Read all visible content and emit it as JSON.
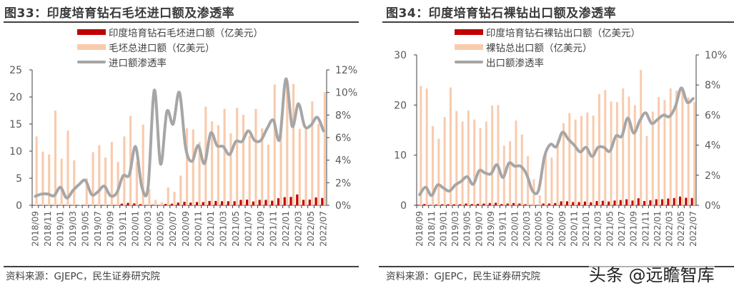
{
  "colors": {
    "lab_grown": "#c00000",
    "total": "#f8cbad",
    "penetration": "#a6a6a6",
    "axis": "#404040"
  },
  "watermark": "头条 @远瞻智库",
  "chart_data": [
    {
      "type": "bar+line",
      "title": "图33：印度培育钻石毛坯进口额及渗透率",
      "source": "资料来源：GJEPC，民生证券研究院",
      "x_tick_labels": [
        "2018/09",
        "2018/11",
        "2019/01",
        "2019/03",
        "2019/05",
        "2019/07",
        "2019/09",
        "2019/11",
        "2020/01",
        "2020/03",
        "2020/05",
        "2020/07",
        "2020/09",
        "2020/11",
        "2021/01",
        "2021/03",
        "2021/05",
        "2021/07",
        "2021/09",
        "2021/11",
        "2022/01",
        "2022/03",
        "2022/05",
        "2022/07"
      ],
      "months": [
        "2018/09",
        "2018/10",
        "2018/11",
        "2018/12",
        "2019/01",
        "2019/02",
        "2019/03",
        "2019/04",
        "2019/05",
        "2019/06",
        "2019/07",
        "2019/08",
        "2019/09",
        "2019/10",
        "2019/11",
        "2019/12",
        "2020/01",
        "2020/02",
        "2020/03",
        "2020/04",
        "2020/05",
        "2020/06",
        "2020/07",
        "2020/08",
        "2020/09",
        "2020/10",
        "2020/11",
        "2020/12",
        "2021/01",
        "2021/02",
        "2021/03",
        "2021/04",
        "2021/05",
        "2021/06",
        "2021/07",
        "2021/08",
        "2021/09",
        "2021/10",
        "2021/11",
        "2021/12",
        "2022/01",
        "2022/02",
        "2022/03",
        "2022/04",
        "2022/05",
        "2022/06",
        "2022/07"
      ],
      "y_left": {
        "min": 0,
        "max": 25,
        "ticks": [
          "0",
          "5",
          "10",
          "15",
          "20",
          "25"
        ]
      },
      "y_right": {
        "min": 0,
        "max": 12,
        "ticks": [
          "0%",
          "2%",
          "4%",
          "6%",
          "8%",
          "10%",
          "12%"
        ]
      },
      "legend_placement": "top-center",
      "series": [
        {
          "name": "印度培育钻石毛坯进口额（亿美元）",
          "kind": "bar",
          "axis": "left",
          "values": [
            0.05,
            0.05,
            0.05,
            0.05,
            0.05,
            0.05,
            0.05,
            0.0,
            0.05,
            0.05,
            0.05,
            0.05,
            0.05,
            0.05,
            0.3,
            0.45,
            0.35,
            0.2,
            0.05,
            0.1,
            0.05,
            0.25,
            0.3,
            0.5,
            0.65,
            0.5,
            0.6,
            0.6,
            0.8,
            0.8,
            0.75,
            0.75,
            0.75,
            1.0,
            1.05,
            0.7,
            1.0,
            1.0,
            0.85,
            1.3,
            1.5,
            1.55,
            2.0,
            1.0,
            1.05,
            1.45,
            1.35
          ]
        },
        {
          "name": "毛坯总进口额（亿美元）",
          "kind": "bar",
          "axis": "left",
          "values": [
            12.7,
            9.9,
            9.4,
            17.5,
            8.6,
            13.8,
            8.3,
            0.1,
            5.0,
            9.8,
            11.1,
            8.8,
            11.7,
            8.0,
            12.7,
            16.5,
            8.0,
            14.9,
            3.0,
            1.0,
            0.6,
            3.3,
            2.5,
            5.5,
            14.2,
            14.0,
            11.7,
            18.2,
            15.5,
            14.8,
            17.8,
            13.3,
            18.0,
            16.7,
            12.8,
            17.8,
            14.2,
            11.2,
            22.3,
            13.7,
            22.2,
            22.4,
            14.1,
            14.5,
            19.2,
            15.0,
            20.9
          ]
        },
        {
          "name": "进口额渗透率",
          "kind": "line",
          "axis": "right",
          "unit": "%",
          "values": [
            0.8,
            1.0,
            1.0,
            0.85,
            1.6,
            0.65,
            1.3,
            1.85,
            2.2,
            0.95,
            1.2,
            1.7,
            0.85,
            1.1,
            2.6,
            2.7,
            5.2,
            1.65,
            1.6,
            10.2,
            3.65,
            8.3,
            7.2,
            10.0,
            5.1,
            3.9,
            5.3,
            3.7,
            6.4,
            5.3,
            5.2,
            4.5,
            5.65,
            5.65,
            6.6,
            5.75,
            5.75,
            6.8,
            7.55,
            5.85,
            11.2,
            7.0,
            9.0,
            7.0,
            7.1,
            7.8,
            6.6
          ]
        }
      ]
    },
    {
      "type": "bar+line",
      "title": "图34：印度培育钻石裸钻出口额及渗透率",
      "source": "资料来源：GJEPC，民生证券研究院",
      "x_tick_labels": [
        "2018/09",
        "2018/11",
        "2019/01",
        "2019/03",
        "2019/05",
        "2019/07",
        "2019/09",
        "2019/11",
        "2020/01",
        "2020/03",
        "2020/05",
        "2020/07",
        "2020/09",
        "2020/11",
        "2021/01",
        "2021/03",
        "2021/05",
        "2021/07",
        "2021/09",
        "2021/11",
        "2022/01",
        "2022/03",
        "2022/05",
        "2022/07"
      ],
      "months": [
        "2018/09",
        "2018/10",
        "2018/11",
        "2018/12",
        "2019/01",
        "2019/02",
        "2019/03",
        "2019/04",
        "2019/05",
        "2019/06",
        "2019/07",
        "2019/08",
        "2019/09",
        "2019/10",
        "2019/11",
        "2019/12",
        "2020/01",
        "2020/02",
        "2020/03",
        "2020/04",
        "2020/05",
        "2020/06",
        "2020/07",
        "2020/08",
        "2020/09",
        "2020/10",
        "2020/11",
        "2020/12",
        "2021/01",
        "2021/02",
        "2021/03",
        "2021/04",
        "2021/05",
        "2021/06",
        "2021/07",
        "2021/08",
        "2021/09",
        "2021/10",
        "2021/11",
        "2021/12",
        "2022/01",
        "2022/02",
        "2022/03",
        "2022/04",
        "2022/05",
        "2022/06",
        "2022/07"
      ],
      "y_left": {
        "min": 0,
        "max": 30,
        "ticks": [
          "0",
          "10",
          "20",
          "30"
        ]
      },
      "y_right": {
        "min": 0,
        "max": 10,
        "ticks": [
          "0%",
          "2%",
          "4%",
          "6%",
          "8%",
          "10%"
        ]
      },
      "legend_placement": "top-center",
      "series": [
        {
          "name": "印度培育钻石裸钻出口额（亿美元）",
          "kind": "bar",
          "axis": "left",
          "values": [
            0.1,
            0.25,
            0.1,
            0.15,
            0.2,
            0.2,
            0.2,
            0.2,
            0.35,
            0.25,
            0.3,
            0.35,
            0.45,
            0.5,
            0.25,
            0.35,
            0.45,
            0.35,
            0.2,
            0.05,
            0.02,
            0.35,
            0.35,
            0.45,
            0.8,
            0.8,
            0.65,
            0.65,
            0.75,
            0.6,
            0.85,
            0.9,
            0.75,
            0.95,
            1.05,
            1.2,
            0.95,
            1.4,
            0.85,
            1.0,
            1.2,
            1.2,
            1.35,
            1.45,
            1.75,
            1.5,
            1.45
          ]
        },
        {
          "name": "裸钻总出口额（亿美元）",
          "kind": "bar",
          "axis": "left",
          "values": [
            23.8,
            23.3,
            15.8,
            13.3,
            17.6,
            23.5,
            18.8,
            16.7,
            18.9,
            17.1,
            15.4,
            16.7,
            19.9,
            20.0,
            11.9,
            12.8,
            16.9,
            14.1,
            9.8,
            5.2,
            2.0,
            10.4,
            9.5,
            13.0,
            16.4,
            18.4,
            17.1,
            17.8,
            18.5,
            17.9,
            22.2,
            23.0,
            20.7,
            20.6,
            23.3,
            21.7,
            20.0,
            27.0,
            13.8,
            18.7,
            21.6,
            21.0,
            23.3,
            22.9,
            23.5,
            21.5,
            20.6
          ]
        },
        {
          "name": "出口额渗透率",
          "kind": "line",
          "axis": "right",
          "unit": "%",
          "values": [
            0.7,
            1.2,
            0.65,
            1.35,
            1.15,
            0.95,
            1.35,
            1.6,
            1.9,
            1.4,
            2.3,
            2.15,
            2.1,
            2.7,
            1.85,
            2.8,
            2.6,
            2.6,
            2.05,
            0.95,
            1.0,
            3.25,
            4.05,
            3.9,
            4.85,
            4.4,
            4.0,
            3.55,
            3.85,
            3.25,
            3.85,
            3.85,
            3.6,
            4.6,
            4.6,
            5.8,
            4.8,
            5.6,
            6.15,
            5.45,
            5.7,
            6.0,
            5.9,
            6.55,
            7.8,
            6.85,
            7.1
          ]
        }
      ]
    }
  ]
}
